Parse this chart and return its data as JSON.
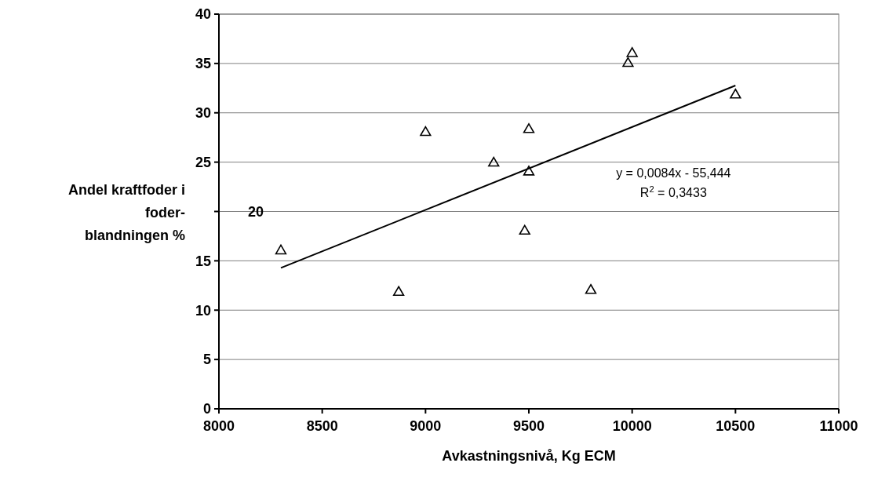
{
  "chart_data": {
    "type": "scatter",
    "xlabel": "Avkastningsnivå, Kg ECM",
    "ylabel": "Andel kraftfoder i\nfoder-\nblandningen %",
    "xlim": [
      8000,
      11000
    ],
    "xticks": [
      8000,
      8500,
      9000,
      9500,
      10000,
      10500,
      11000
    ],
    "ylim": [
      0,
      40
    ],
    "yticks": [
      0,
      5,
      10,
      15,
      {
        "value": 20,
        "label": null
      },
      25,
      30,
      35,
      40
    ],
    "grid": "y",
    "marker": "triangle",
    "series": [
      {
        "color": "#000000",
        "x": [
          8300,
          8870,
          9000,
          9330,
          9500,
          9500,
          9480,
          9800,
          10000,
          9980,
          10500
        ],
        "values": [
          16,
          11.8,
          28,
          24.9,
          28.3,
          24,
          18,
          12,
          36,
          35,
          31.8
        ]
      },
      {
        "type": "line",
        "color": "#000000",
        "x": [
          8300,
          10500
        ],
        "values": [
          14.28,
          32.76
        ],
        "line_style": "solid",
        "marker": "none"
      }
    ],
    "annotations": [
      "20",
      "y = 0,0084x - 55,444",
      "R$^{2}$ = 0,3433"
    ]
  }
}
